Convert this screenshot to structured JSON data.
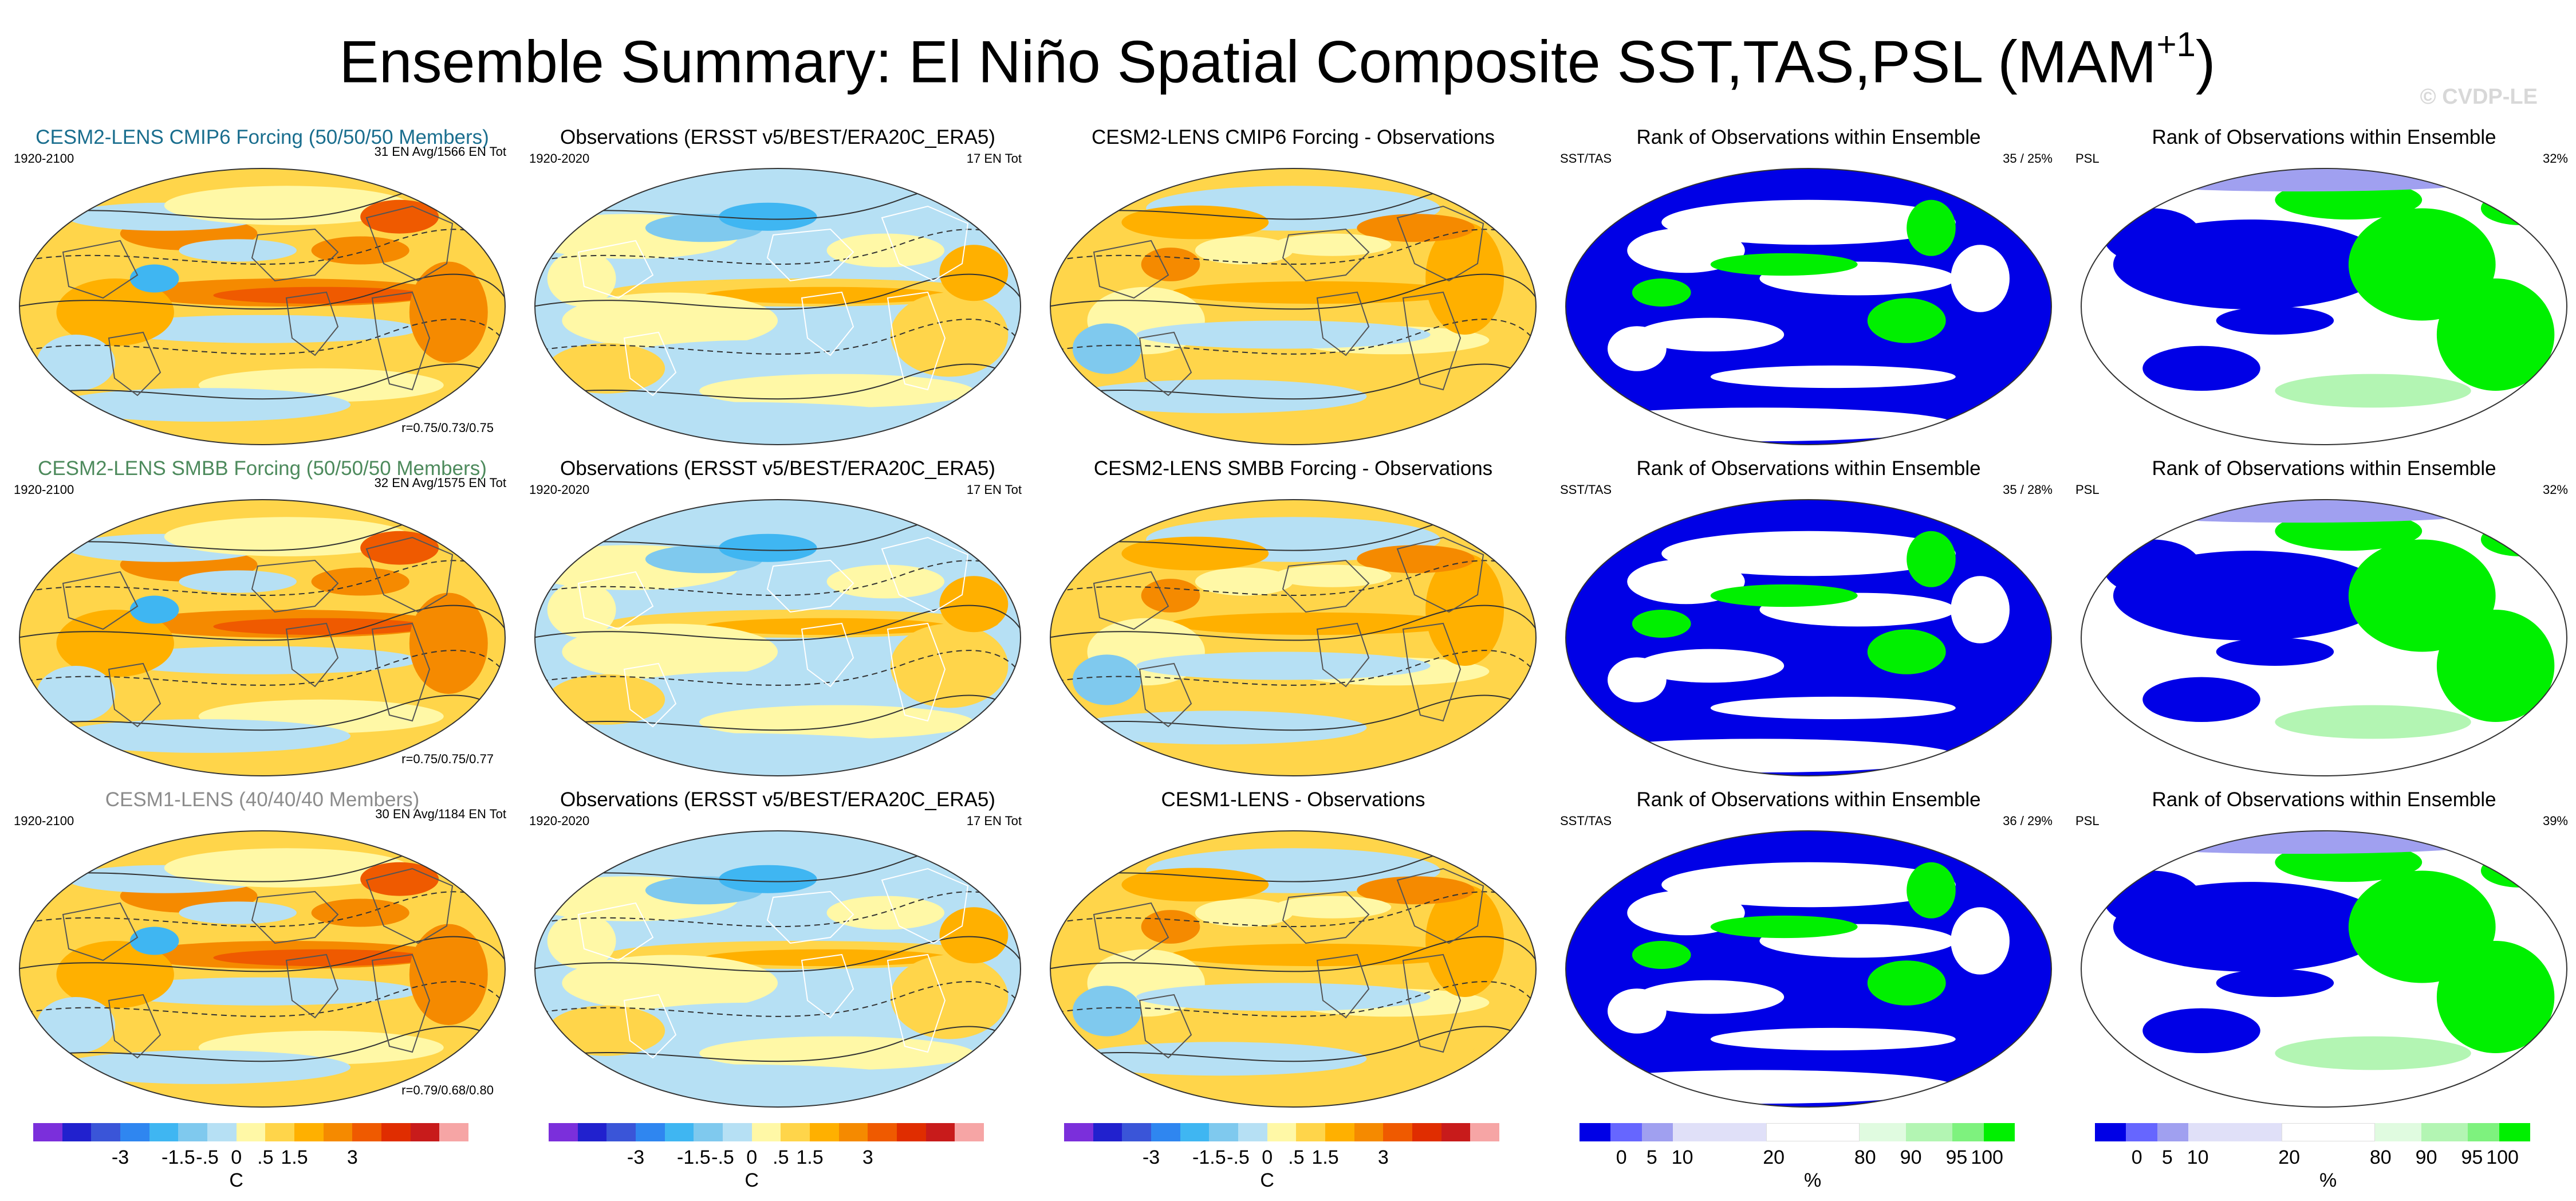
{
  "figure": {
    "title": "Ensemble Summary: El Niño Spatial Composite SST,TAS,PSL (MAM",
    "title_sup": "+1",
    "title_end": ")",
    "watermark": "© CVDP-LE"
  },
  "colors": {
    "model_title_cmip6": "#1a6e8e",
    "model_title_smbb": "#4d8a5c",
    "model_title_cesm1": "#8c8c8c",
    "anomaly_scale": [
      "#7b2fdb",
      "#2121ce",
      "#3a55d8",
      "#2f86f0",
      "#3fb6f2",
      "#7fc9ee",
      "#b6e0f4",
      "#fff8a6",
      "#ffd54a",
      "#ffb000",
      "#f58a00",
      "#ef5a00",
      "#e02d00",
      "#c81b1b",
      "#f6a5a5"
    ],
    "rank_scale": [
      "#0000e6",
      "#6666ff",
      "#a0a0f0",
      "#e0e0f8",
      "#ffffff",
      "#e0fbe0",
      "#b3f5b3",
      "#7ef27e",
      "#00f000"
    ]
  },
  "rows": [
    {
      "model": {
        "title": "CESM2-LENS CMIP6 Forcing (50/50/50 Members)",
        "period": "1920-2100",
        "count": "31 EN Avg/1566 EN Tot",
        "stat": "r=0.75/0.73/0.75"
      },
      "obs": {
        "title": "Observations (ERSST v5/BEST/ERA20C_ERA5)",
        "period": "1920-2020",
        "count": "17 EN Tot"
      },
      "diff": {
        "title": "CESM2-LENS CMIP6 Forcing - Observations"
      },
      "rank_sst": {
        "title": "Rank of Observations within Ensemble",
        "var": "SST/TAS",
        "pct": "35 /  25%"
      },
      "rank_psl": {
        "title": "Rank of Observations within Ensemble",
        "var": "PSL",
        "pct": "32%"
      }
    },
    {
      "model": {
        "title": "CESM2-LENS SMBB Forcing (50/50/50 Members)",
        "period": "1920-2100",
        "count": "32 EN Avg/1575 EN Tot",
        "stat": "r=0.75/0.75/0.77"
      },
      "obs": {
        "title": "Observations (ERSST v5/BEST/ERA20C_ERA5)",
        "period": "1920-2020",
        "count": "17 EN Tot"
      },
      "diff": {
        "title": "CESM2-LENS SMBB Forcing - Observations"
      },
      "rank_sst": {
        "title": "Rank of Observations within Ensemble",
        "var": "SST/TAS",
        "pct": "35 /  28%"
      },
      "rank_psl": {
        "title": "Rank of Observations within Ensemble",
        "var": "PSL",
        "pct": "32%"
      }
    },
    {
      "model": {
        "title": "CESM1-LENS (40/40/40 Members)",
        "period": "1920-2100",
        "count": "30 EN Avg/1184 EN Tot",
        "stat": "r=0.79/0.68/0.80"
      },
      "obs": {
        "title": "Observations (ERSST v5/BEST/ERA20C_ERA5)",
        "period": "1920-2020",
        "count": "17 EN Tot"
      },
      "diff": {
        "title": "CESM1-LENS - Observations"
      },
      "rank_sst": {
        "title": "Rank of Observations within Ensemble",
        "var": "SST/TAS",
        "pct": "36 /  29%"
      },
      "rank_psl": {
        "title": "Rank of Observations within Ensemble",
        "var": "PSL",
        "pct": "39%"
      }
    }
  ],
  "colorbars": {
    "anomaly": {
      "ticks": [
        "-3",
        "-1.5",
        "-.5",
        "0",
        ".5",
        "1.5",
        "3"
      ],
      "unit": "C"
    },
    "rank": {
      "ticks": [
        "0",
        "5",
        "10",
        "20",
        "80",
        "90",
        "95",
        "100"
      ],
      "unit": "%"
    }
  },
  "chart_data": {
    "type": "heatmap",
    "title": "Ensemble Summary: El Niño Spatial Composite SST,TAS,PSL (MAM+1)",
    "variables": [
      "SST",
      "TAS",
      "PSL"
    ],
    "anomaly_levels_C": [
      -3,
      -2,
      -1.5,
      -1,
      -0.5,
      -0.25,
      0,
      0.25,
      0.5,
      1,
      1.5,
      2,
      3
    ],
    "anomaly_tick_labels": [
      "-3",
      "-1.5",
      "-.5",
      "0",
      ".5",
      "1.5",
      "3"
    ],
    "anomaly_unit": "C",
    "rank_levels_pct": [
      0,
      5,
      10,
      20,
      80,
      90,
      95,
      100
    ],
    "rank_unit": "%",
    "pattern_correlations": [
      {
        "model": "CESM2-LENS CMIP6 Forcing",
        "r": [
          0.75,
          0.73,
          0.75
        ]
      },
      {
        "model": "CESM2-LENS SMBB Forcing",
        "r": [
          0.75,
          0.75,
          0.77
        ]
      },
      {
        "model": "CESM1-LENS",
        "r": [
          0.79,
          0.68,
          0.8
        ]
      }
    ],
    "el_nino_events": [
      {
        "model": "CESM2-LENS CMIP6 Forcing",
        "avg": 31,
        "total": 1566
      },
      {
        "model": "CESM2-LENS SMBB Forcing",
        "avg": 32,
        "total": 1575
      },
      {
        "model": "CESM1-LENS",
        "avg": 30,
        "total": 1184
      },
      {
        "model": "Observations",
        "total": 17
      }
    ],
    "rank_summary": [
      {
        "model": "CESM2-LENS CMIP6 Forcing",
        "sst_tas": [
          35,
          25
        ],
        "psl": 32
      },
      {
        "model": "CESM2-LENS SMBB Forcing",
        "sst_tas": [
          35,
          28
        ],
        "psl": 32
      },
      {
        "model": "CESM1-LENS",
        "sst_tas": [
          36,
          29
        ],
        "psl": 39
      }
    ]
  }
}
